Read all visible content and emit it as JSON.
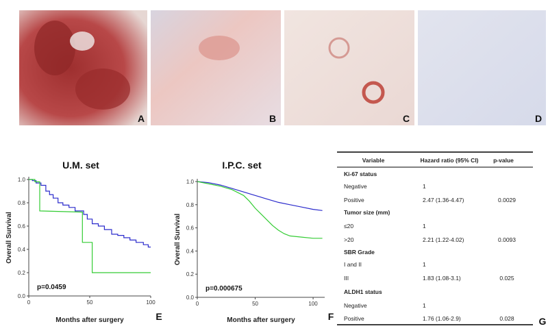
{
  "image_panels": [
    "A",
    "B",
    "C",
    "D"
  ],
  "chart_data": [
    {
      "type": "line",
      "title": "U.M. set",
      "x_label": "Months after surgery",
      "y_label": "Overall Survival",
      "annotation": "p=0.0459",
      "panel_label": "E",
      "xlim": [
        0,
        100
      ],
      "xticks": [
        0,
        50,
        100
      ],
      "ylim": [
        0,
        1
      ],
      "yticks": [
        {
          "value": 0,
          "label": "0.0"
        },
        0.2,
        0.4,
        0.6,
        0.8,
        {
          "value": 1,
          "label": "1.0"
        }
      ],
      "series": [
        {
          "color": "#2a2acc",
          "x": [
            0,
            3,
            3,
            6,
            6,
            10,
            10,
            14,
            14,
            17,
            17,
            20,
            20,
            24,
            24,
            28,
            28,
            33,
            33,
            38,
            38,
            45,
            45,
            48,
            48,
            52,
            52,
            57,
            57,
            62,
            62,
            68,
            68,
            73,
            73,
            78,
            78,
            83,
            83,
            88,
            88,
            94,
            94,
            98,
            98,
            100
          ],
          "values": [
            1,
            1,
            0.99,
            0.99,
            0.97,
            0.97,
            0.95,
            0.95,
            0.9,
            0.9,
            0.87,
            0.87,
            0.84,
            0.84,
            0.8,
            0.8,
            0.78,
            0.78,
            0.76,
            0.76,
            0.73,
            0.73,
            0.7,
            0.7,
            0.66,
            0.66,
            0.62,
            0.62,
            0.6,
            0.6,
            0.57,
            0.57,
            0.53,
            0.53,
            0.52,
            0.52,
            0.5,
            0.5,
            0.48,
            0.48,
            0.46,
            0.46,
            0.44,
            0.44,
            0.42,
            0.42
          ]
        },
        {
          "color": "#33cc33",
          "x": [
            0,
            5,
            5,
            9,
            9,
            44,
            44,
            52,
            52,
            100
          ],
          "values": [
            1,
            1,
            0.98,
            0.98,
            0.73,
            0.72,
            0.46,
            0.46,
            0.2,
            0.2
          ]
        }
      ]
    },
    {
      "type": "line",
      "title": "I.P.C. set",
      "x_label": "Months after surgery",
      "y_label": "Overall Survival",
      "annotation": "p=0.000675",
      "panel_label": "F",
      "xlim": [
        0,
        110
      ],
      "xticks": [
        0,
        50,
        100
      ],
      "ylim": [
        0,
        1
      ],
      "yticks": [
        {
          "value": 0,
          "label": "0.0"
        },
        0.2,
        0.4,
        0.6,
        0.8,
        {
          "value": 1,
          "label": "1.0"
        }
      ],
      "series": [
        {
          "color": "#2a2acc",
          "x": [
            0,
            10,
            20,
            30,
            40,
            50,
            60,
            70,
            80,
            90,
            100,
            108
          ],
          "values": [
            1,
            0.99,
            0.97,
            0.94,
            0.91,
            0.88,
            0.85,
            0.82,
            0.8,
            0.78,
            0.76,
            0.75
          ]
        },
        {
          "color": "#33cc33",
          "x": [
            0,
            10,
            20,
            30,
            40,
            45,
            50,
            55,
            60,
            65,
            70,
            75,
            80,
            90,
            100,
            108
          ],
          "values": [
            1,
            0.98,
            0.96,
            0.93,
            0.88,
            0.83,
            0.77,
            0.72,
            0.67,
            0.62,
            0.58,
            0.55,
            0.53,
            0.52,
            0.51,
            0.51
          ]
        }
      ]
    }
  ],
  "table": {
    "headers": [
      "Variable",
      "Hazard ratio (95% CI)",
      "p-value"
    ],
    "rows": [
      [
        "Ki-67 status"
      ],
      [
        "Negative",
        "1"
      ],
      [
        "Positive",
        "2.47 (1.36-4.47)",
        "0.0029"
      ],
      [
        "Tumor size (mm)"
      ],
      [
        "≤20",
        "1"
      ],
      [
        ">20",
        "2.21 (1.22-4.02)",
        "0.0093"
      ],
      [
        "SBR Grade"
      ],
      [
        "I and II",
        "1"
      ],
      [
        "III",
        "1.83 (1.08-3.1)",
        "0.025"
      ],
      [
        "ALDH1 status"
      ],
      [
        "Negative",
        "1"
      ],
      [
        "Positive",
        "1.76 (1.06-2.9)",
        "0.028"
      ]
    ],
    "panel_label": "G"
  }
}
